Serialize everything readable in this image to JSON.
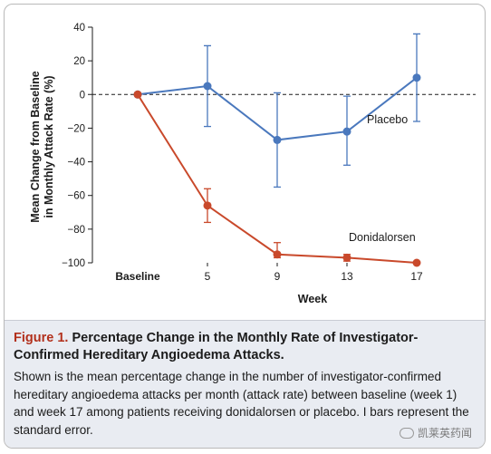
{
  "chart_data": {
    "type": "line",
    "title": "",
    "xlabel": "Week",
    "ylabel_lines": [
      "Mean Change from Baseline",
      "in Monthly Attack Rate (%)"
    ],
    "categories": [
      "Baseline",
      "5",
      "9",
      "13",
      "17"
    ],
    "ylim": [
      -100,
      40
    ],
    "yticks": [
      "40",
      "20",
      "0",
      "−20",
      "−40",
      "−60",
      "−80",
      "−100"
    ],
    "ytick_values": [
      40,
      20,
      0,
      -20,
      -40,
      -60,
      -80,
      -100
    ],
    "reference_line": 0,
    "grid": false,
    "series": [
      {
        "name": "Placebo",
        "color": "#4a78bd",
        "values": [
          0,
          5,
          -27,
          -22,
          10
        ],
        "error_low": [
          0,
          -19,
          -55,
          -42,
          -16
        ],
        "error_high": [
          0,
          29,
          1,
          -1,
          36
        ]
      },
      {
        "name": "Donidalorsen",
        "color": "#c9492b",
        "values": [
          0,
          -66,
          -95,
          -97,
          -100
        ],
        "error_low": [
          0,
          -76,
          -97,
          -99,
          -100
        ],
        "error_high": [
          0,
          -56,
          -88,
          -95,
          -100
        ]
      }
    ]
  },
  "caption": {
    "label": "Figure 1.",
    "title": "Percentage Change in the Monthly Rate of Investigator-Confirmed Hereditary Angioedema Attacks.",
    "description": "Shown is the mean percentage change in the number of investigator-confirmed hereditary angioedema attacks per month (attack rate) between baseline (week 1) and week 17 among patients receiving donidalorsen or placebo. I bars represent the standard error."
  },
  "watermark": {
    "text": "凯莱英药闻",
    "icon": "wechat-icon"
  }
}
